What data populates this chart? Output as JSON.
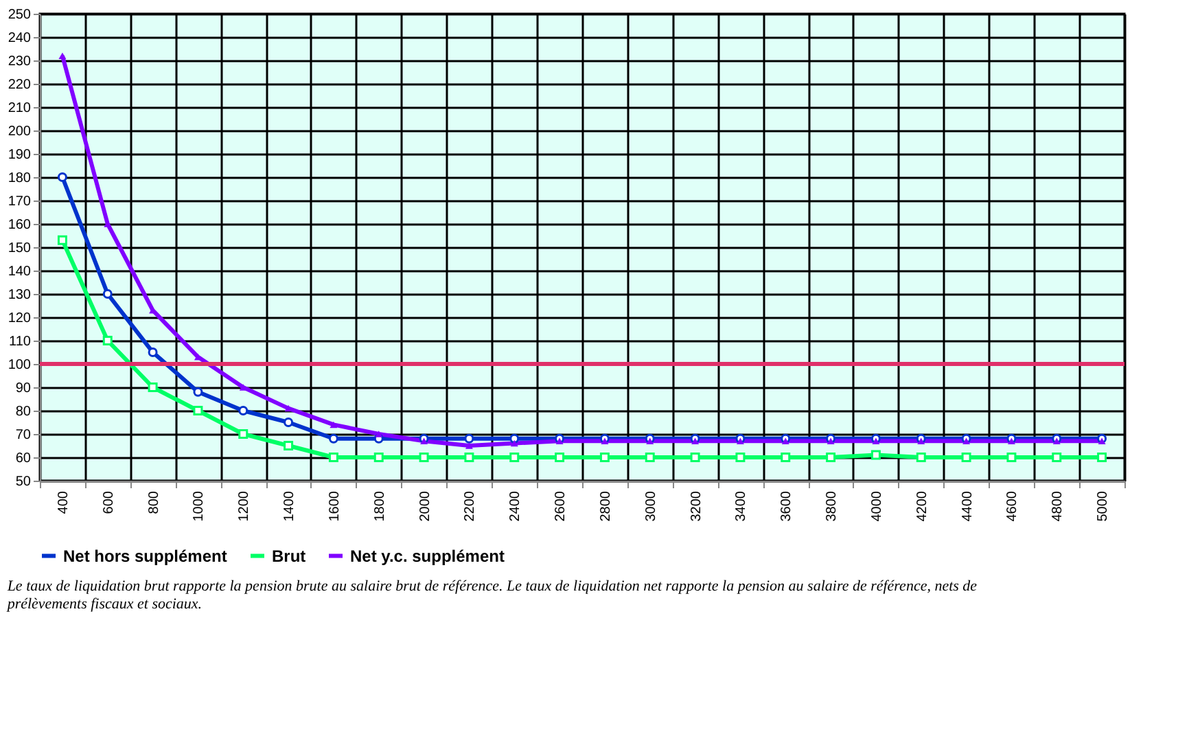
{
  "chart_data": {
    "type": "line",
    "categories": [
      "400",
      "600",
      "800",
      "1000",
      "1200",
      "1400",
      "1600",
      "1800",
      "2000",
      "2200",
      "2400",
      "2600",
      "2800",
      "3000",
      "3200",
      "3400",
      "3600",
      "3800",
      "4000",
      "4200",
      "4400",
      "4600",
      "4800",
      "5000"
    ],
    "series": [
      {
        "name": "Net hors supplément",
        "color": "#0033cc",
        "marker": "circle",
        "values": [
          180,
          130,
          105,
          88,
          80,
          75,
          68,
          68,
          68,
          68,
          68,
          68,
          68,
          68,
          68,
          68,
          68,
          68,
          68,
          68,
          68,
          68,
          68,
          68
        ]
      },
      {
        "name": "Brut",
        "color": "#00ff66",
        "marker": "square",
        "values": [
          153,
          110,
          90,
          80,
          70,
          65,
          60,
          60,
          60,
          60,
          60,
          60,
          60,
          60,
          60,
          60,
          60,
          60,
          61,
          60,
          60,
          60,
          60,
          60
        ]
      },
      {
        "name": "Net y.c. supplément",
        "color": "#8000ff",
        "marker": "triangle",
        "values": [
          232,
          160,
          123,
          103,
          90,
          81,
          74,
          70,
          67,
          65,
          66,
          67,
          67,
          67,
          67,
          67,
          67,
          67,
          67,
          67,
          67,
          67,
          67,
          67
        ]
      }
    ],
    "ylim": [
      50,
      250
    ],
    "yticks": [
      50,
      60,
      70,
      80,
      90,
      100,
      110,
      120,
      130,
      140,
      150,
      160,
      170,
      180,
      190,
      200,
      210,
      220,
      230,
      240,
      250
    ],
    "ref_lines": [
      {
        "axis": "y",
        "value": 100,
        "color": "#e0306a"
      }
    ],
    "grid": true,
    "legend": "bottom",
    "line_style": "solid",
    "annotations": [
      "Le taux de liquidation brut rapporte la pension brute au salaire brut de référence. Le taux de liquidation net rapporte la pension au salaire de référence, nets de prélèvements fiscaux et sociaux."
    ]
  }
}
